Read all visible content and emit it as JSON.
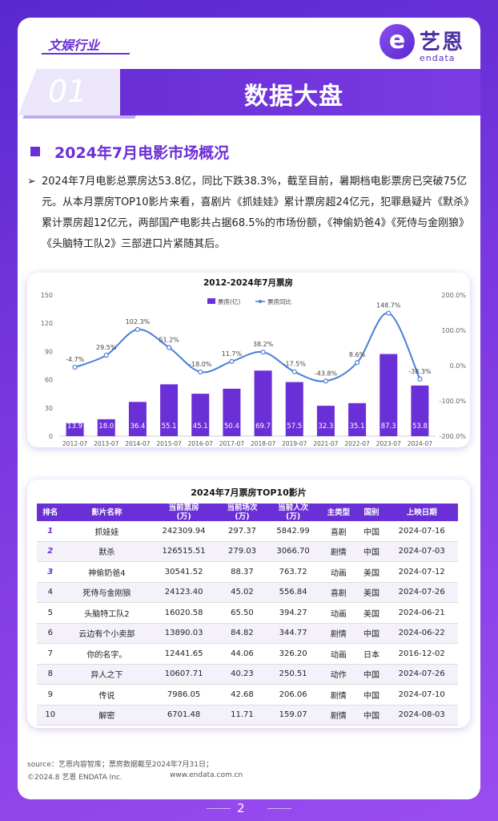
{
  "header": {
    "category": "文娱行业",
    "section_number": "01",
    "title": "数据大盘",
    "logo_cn": "艺恩",
    "logo_en": "endata",
    "logo_mark": "e"
  },
  "section": {
    "title": "2024年7月电影市场概况",
    "bullet": "➢",
    "paragraph": "2024年7月电影总票房达53.8亿，同比下跌38.3%，截至目前，暑期档电影票房已突破75亿元。从本月票房TOP10影片来看，喜剧片《抓娃娃》累计票房超24亿元，犯罪悬疑片《默杀》累计票房超12亿元，两部国产电影共占据68.5%的市场份额，《神偷奶爸4》《死侍与金刚狼》《头脑特工队2》三部进口片紧随其后。"
  },
  "chart_data": {
    "type": "bar+line",
    "title": "2012-2024年7月票房",
    "categories": [
      "2012-07",
      "2013-07",
      "2014-07",
      "2015-07",
      "2016-07",
      "2017-07",
      "2018-07",
      "2019-07",
      "2021-07",
      "2022-07",
      "2023-07",
      "2024-07"
    ],
    "series": [
      {
        "name": "票房(亿)",
        "type": "bar",
        "values": [
          13.9,
          18.0,
          36.4,
          55.1,
          45.1,
          50.4,
          69.7,
          57.5,
          32.3,
          35.1,
          87.3,
          53.8
        ],
        "labels": [
          "13.9",
          "18.0",
          "36.4",
          "55.1",
          "45.1",
          "50.4",
          "69.7",
          "57.5",
          "32.3",
          "35.1",
          "87.3",
          "53.8"
        ]
      },
      {
        "name": "票房同比",
        "type": "line",
        "values": [
          -4.7,
          29.5,
          102.3,
          51.2,
          -18.0,
          11.7,
          38.2,
          -17.5,
          -43.8,
          8.6,
          148.7,
          -38.3
        ],
        "labels": [
          "-4.7%",
          "29.5%",
          "102.3%",
          "51.2%",
          "-18.0%",
          "11.7%",
          "38.2%",
          "-17.5%",
          "-43.8%",
          "8.6%",
          "148.7%",
          "-38.3%"
        ]
      }
    ],
    "y_left": {
      "min": 0,
      "max": 150,
      "ticks": [
        "0",
        "30",
        "60",
        "90",
        "120",
        "150"
      ]
    },
    "y_right": {
      "min": -200,
      "max": 200,
      "ticks": [
        "200.0%",
        "100.0%",
        "0.0%",
        "-100.0%",
        "-200.0%"
      ]
    },
    "legend": [
      "票房(亿)",
      "票房同比"
    ],
    "colors": {
      "bar": "#6a2fd6",
      "line": "#4a7fd9",
      "label": "#ffffff"
    }
  },
  "table": {
    "title": "2024年7月票房TOP10影片",
    "headers": [
      "排名",
      "影片名称",
      "当前票房\n(万)",
      "当前场次\n(万)",
      "当前人次\n(万)",
      "主类型",
      "国别",
      "上映日期"
    ],
    "rows": [
      [
        "1",
        "抓娃娃",
        "242309.94",
        "297.37",
        "5842.99",
        "喜剧",
        "中国",
        "2024-07-16"
      ],
      [
        "2",
        "默杀",
        "126515.51",
        "279.03",
        "3066.70",
        "剧情",
        "中国",
        "2024-07-03"
      ],
      [
        "3",
        "神偷奶爸4",
        "30541.52",
        "88.37",
        "763.72",
        "动画",
        "美国",
        "2024-07-12"
      ],
      [
        "4",
        "死侍与金刚狼",
        "24123.40",
        "45.02",
        "556.84",
        "喜剧",
        "美国",
        "2024-07-26"
      ],
      [
        "5",
        "头脑特工队2",
        "16020.58",
        "65.50",
        "394.27",
        "动画",
        "美国",
        "2024-06-21"
      ],
      [
        "6",
        "云边有个小卖部",
        "13890.03",
        "84.82",
        "344.77",
        "剧情",
        "中国",
        "2024-06-22"
      ],
      [
        "7",
        "你的名字。",
        "12441.65",
        "44.06",
        "326.20",
        "动画",
        "日本",
        "2016-12-02"
      ],
      [
        "8",
        "异人之下",
        "10607.71",
        "40.23",
        "250.51",
        "动作",
        "中国",
        "2024-07-26"
      ],
      [
        "9",
        "传说",
        "7986.05",
        "42.68",
        "206.06",
        "剧情",
        "中国",
        "2024-07-10"
      ],
      [
        "10",
        "解密",
        "6701.48",
        "11.71",
        "159.07",
        "剧情",
        "中国",
        "2024-08-03"
      ]
    ]
  },
  "footer": {
    "source": "source：艺恩内容智库；票房数据截至2024年7月31日；",
    "copyright": "©2024.8 艺恩 ENDATA Inc.",
    "website": "www.endata.com.cn",
    "page_number": "2"
  }
}
